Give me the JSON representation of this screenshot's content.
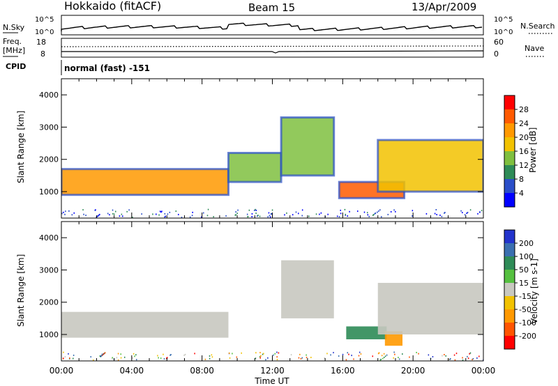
{
  "header": {
    "station": "Hokkaido (fitACF)",
    "beam": "Beam 15",
    "date": "13/Apr/2009"
  },
  "nsky_panel": {
    "left_label": "N.Sky",
    "right_label": "N.Search",
    "tick_top": "10^5",
    "tick_bottom": "10^0"
  },
  "freq_panel": {
    "left_label": "Freq.",
    "unit": "[MHz]",
    "right_label": "Nave",
    "left_ticks": [
      "18",
      "8"
    ],
    "right_ticks": [
      "60",
      "0"
    ]
  },
  "cpid": {
    "label": "CPID",
    "value": "normal (fast) -151"
  },
  "x_axis": {
    "label": "Time UT",
    "ticks": [
      "00:00",
      "04:00",
      "08:00",
      "12:00",
      "16:00",
      "20:00",
      "00:00"
    ]
  },
  "power_panel": {
    "ylabel": "Slant Range [km]",
    "yticks": [
      1000,
      2000,
      3000,
      4000
    ],
    "colorbar_label": "Power [dB]",
    "colorbar_ticks": [
      "4",
      "8",
      "12",
      "16",
      "20",
      "24",
      "28"
    ],
    "colors": [
      "#0000ff",
      "#2a4ec8",
      "#2e8b57",
      "#7fbf3f",
      "#f2c200",
      "#ff9900",
      "#ff5a00",
      "#ff0000"
    ]
  },
  "velocity_panel": {
    "ylabel": "Slant Range [km]",
    "yticks": [
      1000,
      2000,
      3000,
      4000
    ],
    "colorbar_label": "Velocity [m s-1]",
    "colorbar_ticks": [
      "200",
      "100",
      "50",
      "15",
      "-15",
      "-50",
      "-100",
      "-200"
    ],
    "colors": [
      "#2233cc",
      "#3a6fb0",
      "#2e8b57",
      "#55c040",
      "#c8c8c0",
      "#f2c200",
      "#ff9900",
      "#ff5500",
      "#ff0000"
    ]
  },
  "chart_data": [
    {
      "type": "heatmap",
      "title": "Power",
      "xlabel": "Time UT",
      "ylabel": "Slant Range [km]",
      "xlim": [
        0,
        24
      ],
      "ylim": [
        180,
        4500
      ],
      "colorbar": {
        "label": "Power [dB]",
        "range": [
          0,
          32
        ]
      },
      "regions": [
        {
          "t_start": 0.0,
          "t_end": 9.5,
          "range_start": 900,
          "range_end": 1700,
          "power_dB": 20
        },
        {
          "t_start": 9.5,
          "t_end": 12.5,
          "range_start": 1300,
          "range_end": 2200,
          "power_dB": 12
        },
        {
          "t_start": 12.5,
          "t_end": 15.5,
          "range_start": 1500,
          "range_end": 3300,
          "power_dB": 14
        },
        {
          "t_start": 15.8,
          "t_end": 19.5,
          "range_start": 800,
          "range_end": 1300,
          "power_dB": 24
        },
        {
          "t_start": 18.0,
          "t_end": 24.0,
          "range_start": 1000,
          "range_end": 2600,
          "power_dB": 18
        }
      ]
    },
    {
      "type": "heatmap",
      "title": "Velocity",
      "xlabel": "Time UT",
      "ylabel": "Slant Range [km]",
      "xlim": [
        0,
        24
      ],
      "ylim": [
        180,
        4500
      ],
      "colorbar": {
        "label": "Velocity [m s-1]",
        "range": [
          -200,
          200
        ]
      },
      "regions": [
        {
          "t_start": 0.0,
          "t_end": 9.5,
          "range_start": 900,
          "range_end": 1700,
          "velocity": 0
        },
        {
          "t_start": 12.5,
          "t_end": 15.5,
          "range_start": 1500,
          "range_end": 3300,
          "velocity": 0
        },
        {
          "t_start": 16.2,
          "t_end": 18.5,
          "range_start": 850,
          "range_end": 1250,
          "velocity": 60
        },
        {
          "t_start": 18.4,
          "t_end": 19.4,
          "range_start": 650,
          "range_end": 1100,
          "velocity": -60
        },
        {
          "t_start": 18.0,
          "t_end": 24.0,
          "range_start": 1000,
          "range_end": 2600,
          "velocity": 0
        }
      ]
    }
  ]
}
